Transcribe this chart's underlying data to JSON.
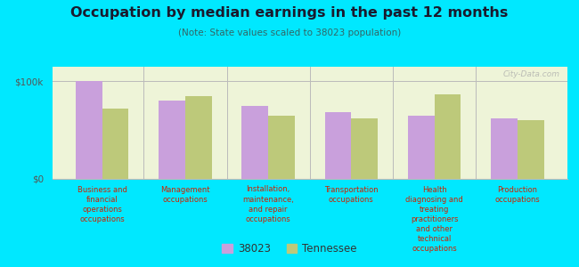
{
  "title": "Occupation by median earnings in the past 12 months",
  "subtitle": "(Note: State values scaled to 38023 population)",
  "categories": [
    "Business and\nfinancial\noperations\noccupations",
    "Management\noccupations",
    "Installation,\nmaintenance,\nand repair\noccupations",
    "Transportation\noccupations",
    "Health\ndiagnosing and\ntreating\npractitioners\nand other\ntechnical\noccupations",
    "Production\noccupations"
  ],
  "values_38023": [
    100000,
    80000,
    75000,
    68000,
    65000,
    62000
  ],
  "values_tennessee": [
    72000,
    85000,
    65000,
    62000,
    87000,
    60000
  ],
  "color_38023": "#c9a0dc",
  "color_tennessee": "#bdc97a",
  "background_color": "#00e8ff",
  "chart_bg_top": "#eef4d8",
  "chart_bg_bottom": "#d8e8b8",
  "ylabel_ticks": [
    "$0",
    "$100k"
  ],
  "ytick_values": [
    0,
    100000
  ],
  "ylim": [
    0,
    115000
  ],
  "legend_label_38023": "38023",
  "legend_label_tennessee": "Tennessee",
  "watermark": "City-Data.com",
  "title_color": "#1a1a2e",
  "subtitle_color": "#336666",
  "xlabel_color": "#cc2200"
}
